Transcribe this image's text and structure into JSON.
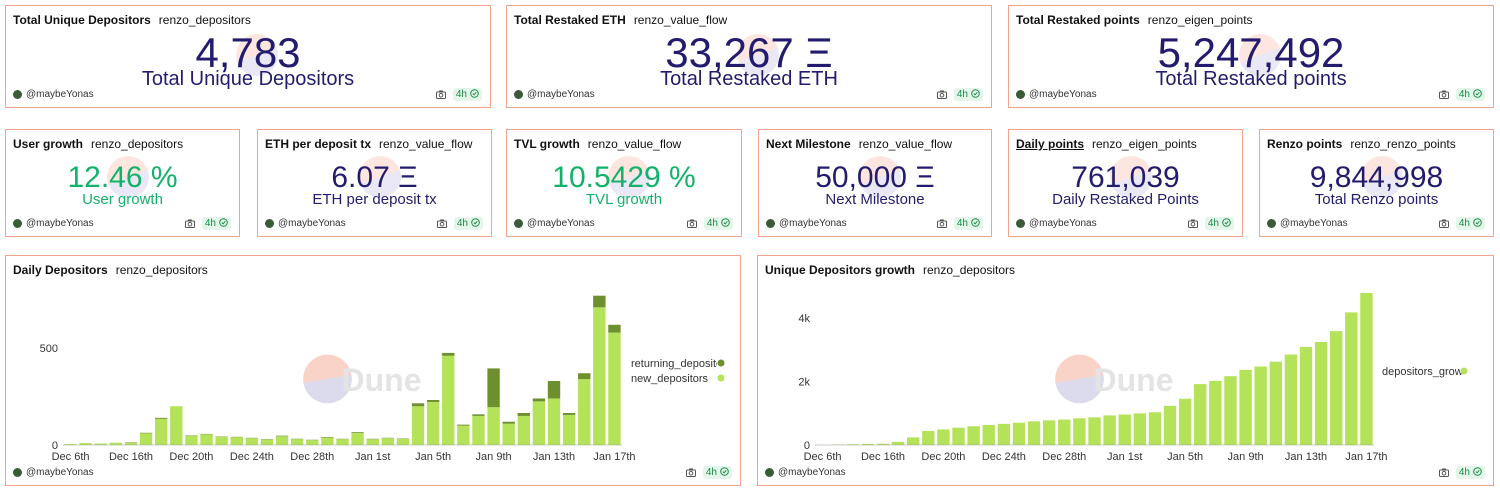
{
  "counters": [
    {
      "title": "Total Unique Depositors",
      "query": "renzo_depositors",
      "value": "4,783",
      "label": "Total Unique Depositors",
      "color": "#231c6e",
      "author": "@maybeYonas",
      "refresh": "4h"
    },
    {
      "title": "Total Restaked ETH",
      "query": "renzo_value_flow",
      "value": "33,267 Ξ",
      "label": "Total Restaked ETH",
      "color": "#231c6e",
      "author": "@maybeYonas",
      "refresh": "4h"
    },
    {
      "title": "Total Restaked points",
      "query": "renzo_eigen_points",
      "value": "5,247,492",
      "label": "Total Restaked points",
      "color": "#231c6e",
      "author": "@maybeYonas",
      "refresh": "4h"
    },
    {
      "title": "User growth",
      "query": "renzo_depositors",
      "value": "12.46 %",
      "label": "User growth",
      "color": "#13b26a",
      "author": "@maybeYonas",
      "refresh": "4h"
    },
    {
      "title": "ETH per deposit tx",
      "query": "renzo_value_flow",
      "value": "6.07 Ξ",
      "label": "ETH per deposit tx",
      "color": "#231c6e",
      "author": "@maybeYonas",
      "refresh": "4h"
    },
    {
      "title": "TVL growth",
      "query": "renzo_value_flow",
      "value": "10.5429 %",
      "label": "TVL growth",
      "color": "#13b26a",
      "author": "@maybeYonas",
      "refresh": "4h"
    },
    {
      "title": "Next Milestone",
      "query": "renzo_value_flow",
      "value": "50,000 Ξ",
      "label": "Next Milestone",
      "color": "#231c6e",
      "author": "@maybeYonas",
      "refresh": "4h"
    },
    {
      "title": "Daily points",
      "query": "renzo_eigen_points",
      "value": "761,039",
      "label": "Daily Restaked Points",
      "color": "#231c6e",
      "underlined": true,
      "author": "@maybeYonas",
      "refresh": "4h"
    },
    {
      "title": "Renzo points",
      "query": "renzo_renzo_points",
      "value": "9,844,998",
      "label": "Total Renzo points",
      "color": "#231c6e",
      "author": "@maybeYonas",
      "refresh": "4h"
    }
  ],
  "chart_data": [
    {
      "type": "bar",
      "stacked": true,
      "title": "Daily Depositors",
      "query": "renzo_depositors",
      "categories": [
        "Dec 6th",
        null,
        null,
        null,
        "Dec 16th",
        null,
        null,
        null,
        "Dec 20th",
        null,
        null,
        null,
        "Dec 24th",
        null,
        null,
        null,
        "Dec 28th",
        null,
        null,
        null,
        "Jan 1st",
        null,
        null,
        null,
        "Jan 5th",
        null,
        null,
        null,
        "Jan 9th",
        null,
        null,
        null,
        "Jan 13th",
        null,
        null,
        null,
        "Jan 17th"
      ],
      "series": [
        {
          "name": "returning_depositors",
          "color": "#6e8f2e",
          "values": [
            0,
            0,
            0,
            0,
            2,
            3,
            5,
            0,
            2,
            2,
            2,
            2,
            2,
            2,
            3,
            2,
            2,
            3,
            2,
            4,
            2,
            2,
            2,
            15,
            10,
            15,
            5,
            8,
            200,
            10,
            15,
            15,
            90,
            10,
            30,
            60,
            40
          ]
        },
        {
          "name": "new_depositors",
          "color": "#b4e35a",
          "values": [
            5,
            10,
            8,
            12,
            12,
            60,
            135,
            200,
            48,
            55,
            42,
            40,
            35,
            28,
            45,
            30,
            25,
            38,
            30,
            62,
            30,
            35,
            32,
            200,
            222,
            460,
            100,
            150,
            195,
            110,
            150,
            225,
            240,
            155,
            340,
            710,
            580
          ]
        }
      ],
      "ylim": [
        0,
        820
      ],
      "yticks": [
        0,
        500
      ],
      "legend": "right",
      "watermark": "Dune",
      "author": "@maybeYonas",
      "refresh": "4h"
    },
    {
      "type": "bar",
      "title": "Unique Depositors growth",
      "query": "renzo_depositors",
      "categories": [
        "Dec 6th",
        null,
        null,
        null,
        "Dec 16th",
        null,
        null,
        null,
        "Dec 20th",
        null,
        null,
        null,
        "Dec 24th",
        null,
        null,
        null,
        "Dec 28th",
        null,
        null,
        null,
        "Jan 1st",
        null,
        null,
        null,
        "Jan 5th",
        null,
        null,
        null,
        "Jan 9th",
        null,
        null,
        null,
        "Jan 13th",
        null,
        null,
        null,
        "Jan 17th"
      ],
      "series": [
        {
          "name": "depositors_growth",
          "color": "#b4e35a",
          "values": [
            5,
            15,
            25,
            35,
            40,
            100,
            240,
            440,
            490,
            545,
            590,
            630,
            665,
            700,
            745,
            775,
            800,
            840,
            870,
            930,
            960,
            995,
            1030,
            1230,
            1455,
            1915,
            2015,
            2165,
            2360,
            2470,
            2620,
            2845,
            3085,
            3240,
            3580,
            4170,
            4783
          ]
        }
      ],
      "ylim": [
        0,
        5000
      ],
      "yticks": [
        0,
        {
          "value": 2000,
          "label": "2k"
        },
        {
          "value": 4000,
          "label": "4k"
        }
      ],
      "legend": "right",
      "watermark": "Dune",
      "author": "@maybeYonas",
      "refresh": "4h"
    }
  ]
}
